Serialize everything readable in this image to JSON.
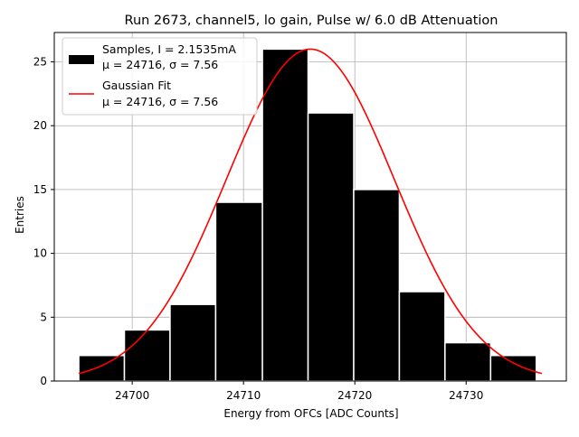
{
  "chart_data": {
    "type": "bar",
    "title": "Run 2673, channel5, lo gain, Pulse w/ 6.0 dB Attenuation",
    "xlabel": "Energy from OFCs [ADC Counts]",
    "ylabel": "Entries",
    "xlim": [
      24693.0,
      24739.0
    ],
    "ylim": [
      0,
      27.3
    ],
    "xticks": [
      24700,
      24710,
      24720,
      24730
    ],
    "yticks": [
      0,
      5,
      10,
      15,
      20,
      25
    ],
    "grid": true,
    "legend_position": "top-left",
    "histogram": {
      "name_line1": "Samples, I = 2.1535mA",
      "name_line2": "μ = 24716, σ = 7.56",
      "color": "#000000",
      "edgecolor": "#ffffff",
      "bins": [
        24695.2,
        24699.3,
        24703.4,
        24707.5,
        24711.7,
        24715.8,
        24719.9,
        24724.0,
        24728.1,
        24732.2,
        24736.3
      ],
      "counts": [
        2,
        4,
        6,
        14,
        26,
        21,
        15,
        7,
        3,
        2
      ]
    },
    "fit": {
      "name_line1": "Gaussian Fit",
      "name_line2": "μ = 24716, σ = 7.56",
      "color": "#ff0000",
      "mu": 24716,
      "sigma": 7.56,
      "amplitude": 26.0,
      "x_range": [
        24695.2,
        24736.8
      ]
    }
  }
}
